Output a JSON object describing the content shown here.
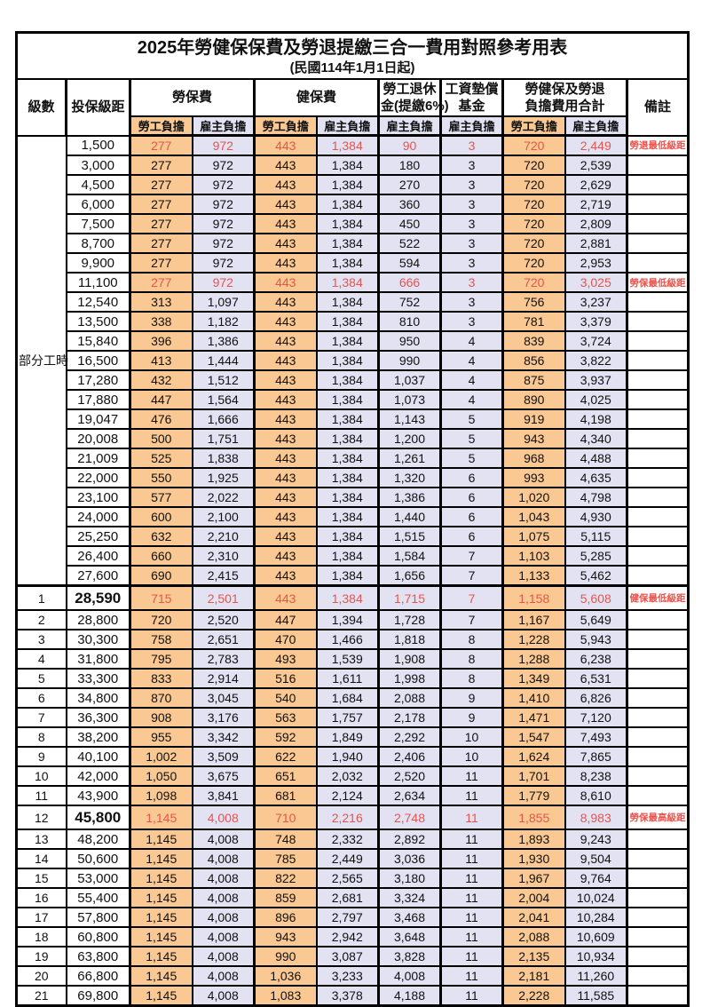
{
  "title": "2025年勞健保保費及勞退提繳三合一費用對照參考用表",
  "subtitle": "(民國114年1月1日起)",
  "headers": {
    "level": "級數",
    "bracket": "投保級距",
    "labor": "勞保費",
    "health": "健保費",
    "pension_line1": "勞工退休",
    "pension_line2": "金(提繳6%)",
    "fund_line1": "工資墊償",
    "fund_line2": "基金",
    "total_line1": "勞健保及勞退",
    "total_line2": "負擔費用合計",
    "note": "備註",
    "employee": "勞工負擔",
    "employer": "雇主負擔"
  },
  "part_time": {
    "label": "部分工時",
    "rowspan": 23
  },
  "colors": {
    "employee_bg": "#F9C893",
    "employer_bg": "#E2E2F3",
    "highlight_red": "#E8544C",
    "border": "#000000"
  },
  "notes_legend": {
    "pension_min": "勞退最低級距",
    "labor_min": "勞保最低級距",
    "health_min": "健保最低級距",
    "labor_max": "勞保最高級距"
  },
  "rows": [
    [
      "",
      "1,500",
      "277",
      "972",
      "443",
      "1,384",
      "90",
      "3",
      "720",
      "2,449",
      "勞退最低級距"
    ],
    [
      "",
      "3,000",
      "277",
      "972",
      "443",
      "1,384",
      "180",
      "3",
      "720",
      "2,539",
      ""
    ],
    [
      "",
      "4,500",
      "277",
      "972",
      "443",
      "1,384",
      "270",
      "3",
      "720",
      "2,629",
      ""
    ],
    [
      "",
      "6,000",
      "277",
      "972",
      "443",
      "1,384",
      "360",
      "3",
      "720",
      "2,719",
      ""
    ],
    [
      "",
      "7,500",
      "277",
      "972",
      "443",
      "1,384",
      "450",
      "3",
      "720",
      "2,809",
      ""
    ],
    [
      "",
      "8,700",
      "277",
      "972",
      "443",
      "1,384",
      "522",
      "3",
      "720",
      "2,881",
      ""
    ],
    [
      "",
      "9,900",
      "277",
      "972",
      "443",
      "1,384",
      "594",
      "3",
      "720",
      "2,953",
      ""
    ],
    [
      "",
      "11,100",
      "277",
      "972",
      "443",
      "1,384",
      "666",
      "3",
      "720",
      "3,025",
      "勞保最低級距"
    ],
    [
      "",
      "12,540",
      "313",
      "1,097",
      "443",
      "1,384",
      "752",
      "3",
      "756",
      "3,237",
      ""
    ],
    [
      "",
      "13,500",
      "338",
      "1,182",
      "443",
      "1,384",
      "810",
      "3",
      "781",
      "3,379",
      ""
    ],
    [
      "",
      "15,840",
      "396",
      "1,386",
      "443",
      "1,384",
      "950",
      "4",
      "839",
      "3,724",
      ""
    ],
    [
      "",
      "16,500",
      "413",
      "1,444",
      "443",
      "1,384",
      "990",
      "4",
      "856",
      "3,822",
      ""
    ],
    [
      "",
      "17,280",
      "432",
      "1,512",
      "443",
      "1,384",
      "1,037",
      "4",
      "875",
      "3,937",
      ""
    ],
    [
      "",
      "17,880",
      "447",
      "1,564",
      "443",
      "1,384",
      "1,073",
      "4",
      "890",
      "4,025",
      ""
    ],
    [
      "",
      "19,047",
      "476",
      "1,666",
      "443",
      "1,384",
      "1,143",
      "5",
      "919",
      "4,198",
      ""
    ],
    [
      "",
      "20,008",
      "500",
      "1,751",
      "443",
      "1,384",
      "1,200",
      "5",
      "943",
      "4,340",
      ""
    ],
    [
      "",
      "21,009",
      "525",
      "1,838",
      "443",
      "1,384",
      "1,261",
      "5",
      "968",
      "4,488",
      ""
    ],
    [
      "",
      "22,000",
      "550",
      "1,925",
      "443",
      "1,384",
      "1,320",
      "6",
      "993",
      "4,635",
      ""
    ],
    [
      "",
      "23,100",
      "577",
      "2,022",
      "443",
      "1,384",
      "1,386",
      "6",
      "1,020",
      "4,798",
      ""
    ],
    [
      "",
      "24,000",
      "600",
      "2,100",
      "443",
      "1,384",
      "1,440",
      "6",
      "1,043",
      "4,930",
      ""
    ],
    [
      "",
      "25,250",
      "632",
      "2,210",
      "443",
      "1,384",
      "1,515",
      "6",
      "1,075",
      "5,115",
      ""
    ],
    [
      "",
      "26,400",
      "660",
      "2,310",
      "443",
      "1,384",
      "1,584",
      "7",
      "1,103",
      "5,285",
      ""
    ],
    [
      "",
      "27,600",
      "690",
      "2,415",
      "443",
      "1,384",
      "1,656",
      "7",
      "1,133",
      "5,462",
      ""
    ],
    [
      "1",
      "28,590",
      "715",
      "2,501",
      "443",
      "1,384",
      "1,715",
      "7",
      "1,158",
      "5,608",
      "健保最低級距"
    ],
    [
      "2",
      "28,800",
      "720",
      "2,520",
      "447",
      "1,394",
      "1,728",
      "7",
      "1,167",
      "5,649",
      ""
    ],
    [
      "3",
      "30,300",
      "758",
      "2,651",
      "470",
      "1,466",
      "1,818",
      "8",
      "1,228",
      "5,943",
      ""
    ],
    [
      "4",
      "31,800",
      "795",
      "2,783",
      "493",
      "1,539",
      "1,908",
      "8",
      "1,288",
      "6,238",
      ""
    ],
    [
      "5",
      "33,300",
      "833",
      "2,914",
      "516",
      "1,611",
      "1,998",
      "8",
      "1,349",
      "6,531",
      ""
    ],
    [
      "6",
      "34,800",
      "870",
      "3,045",
      "540",
      "1,684",
      "2,088",
      "9",
      "1,410",
      "6,826",
      ""
    ],
    [
      "7",
      "36,300",
      "908",
      "3,176",
      "563",
      "1,757",
      "2,178",
      "9",
      "1,471",
      "7,120",
      ""
    ],
    [
      "8",
      "38,200",
      "955",
      "3,342",
      "592",
      "1,849",
      "2,292",
      "10",
      "1,547",
      "7,493",
      ""
    ],
    [
      "9",
      "40,100",
      "1,002",
      "3,509",
      "622",
      "1,940",
      "2,406",
      "10",
      "1,624",
      "7,865",
      ""
    ],
    [
      "10",
      "42,000",
      "1,050",
      "3,675",
      "651",
      "2,032",
      "2,520",
      "11",
      "1,701",
      "8,238",
      ""
    ],
    [
      "11",
      "43,900",
      "1,098",
      "3,841",
      "681",
      "2,124",
      "2,634",
      "11",
      "1,779",
      "8,610",
      ""
    ],
    [
      "12",
      "45,800",
      "1,145",
      "4,008",
      "710",
      "2,216",
      "2,748",
      "11",
      "1,855",
      "8,983",
      "勞保最高級距"
    ],
    [
      "13",
      "48,200",
      "1,145",
      "4,008",
      "748",
      "2,332",
      "2,892",
      "11",
      "1,893",
      "9,243",
      ""
    ],
    [
      "14",
      "50,600",
      "1,145",
      "4,008",
      "785",
      "2,449",
      "3,036",
      "11",
      "1,930",
      "9,504",
      ""
    ],
    [
      "15",
      "53,000",
      "1,145",
      "4,008",
      "822",
      "2,565",
      "3,180",
      "11",
      "1,967",
      "9,764",
      ""
    ],
    [
      "16",
      "55,400",
      "1,145",
      "4,008",
      "859",
      "2,681",
      "3,324",
      "11",
      "2,004",
      "10,024",
      ""
    ],
    [
      "17",
      "57,800",
      "1,145",
      "4,008",
      "896",
      "2,797",
      "3,468",
      "11",
      "2,041",
      "10,284",
      ""
    ],
    [
      "18",
      "60,800",
      "1,145",
      "4,008",
      "943",
      "2,942",
      "3,648",
      "11",
      "2,088",
      "10,609",
      ""
    ],
    [
      "19",
      "63,800",
      "1,145",
      "4,008",
      "990",
      "3,087",
      "3,828",
      "11",
      "2,135",
      "10,934",
      ""
    ],
    [
      "20",
      "66,800",
      "1,145",
      "4,008",
      "1,036",
      "3,233",
      "4,008",
      "11",
      "2,181",
      "11,260",
      ""
    ],
    [
      "21",
      "69,800",
      "1,145",
      "4,008",
      "1,083",
      "3,378",
      "4,188",
      "11",
      "2,228",
      "11,585",
      ""
    ]
  ]
}
